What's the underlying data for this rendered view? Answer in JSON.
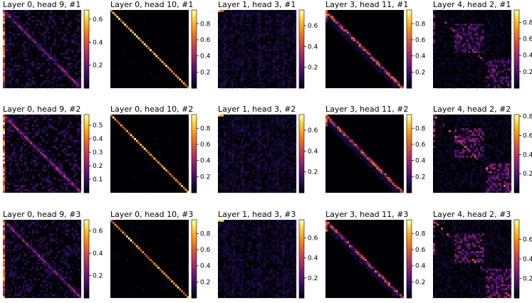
{
  "chart_data": {
    "type": "heatmap",
    "colormap": "inferno",
    "matrix_size": 40,
    "panels": [
      {
        "title": "Layer 0, head 9, #1",
        "pattern": "noisy-diagonal",
        "vmax": 0.68,
        "ticks": [
          0.2,
          0.4,
          0.6
        ],
        "seed": 11
      },
      {
        "title": "Layer 0, head 10, #1",
        "pattern": "diagonal",
        "vmax": 0.97,
        "ticks": [
          0.2,
          0.4,
          0.6,
          0.8
        ],
        "seed": 12
      },
      {
        "title": "Layer 1, head 3, #1",
        "pattern": "diffuse",
        "vmax": 0.75,
        "ticks": [
          0.2,
          0.4,
          0.6
        ],
        "seed": 13
      },
      {
        "title": "Layer 3, head 11, #1",
        "pattern": "sub-diagonal",
        "vmax": 0.97,
        "ticks": [
          0.2,
          0.4,
          0.6,
          0.8
        ],
        "seed": 14
      },
      {
        "title": "Layer 4, head 2, #1",
        "pattern": "blocks",
        "vmax": 0.95,
        "ticks": [
          0.2,
          0.4,
          0.6,
          0.8
        ],
        "seed": 15
      },
      {
        "title": "Layer 0, head 9, #2",
        "pattern": "noisy-diagonal",
        "vmax": 0.58,
        "ticks": [
          0.1,
          0.2,
          0.3,
          0.4,
          0.5
        ],
        "seed": 21
      },
      {
        "title": "Layer 0, head 10, #2",
        "pattern": "diagonal",
        "vmax": 0.97,
        "ticks": [
          0.2,
          0.4,
          0.6,
          0.8
        ],
        "seed": 22
      },
      {
        "title": "Layer 1, head 3, #2",
        "pattern": "diffuse",
        "vmax": 0.75,
        "ticks": [
          0.2,
          0.4,
          0.6
        ],
        "seed": 23
      },
      {
        "title": "Layer 3, head 11, #2",
        "pattern": "sub-diagonal",
        "vmax": 0.97,
        "ticks": [
          0.2,
          0.4,
          0.6,
          0.8
        ],
        "seed": 24
      },
      {
        "title": "Layer 4, head 2, #2",
        "pattern": "blocks",
        "vmax": 0.82,
        "ticks": [
          0.2,
          0.4,
          0.6,
          0.8
        ],
        "seed": 25
      },
      {
        "title": "Layer 0, head 9, #3",
        "pattern": "noisy-diagonal",
        "vmax": 0.7,
        "ticks": [
          0.2,
          0.4,
          0.6
        ],
        "seed": 31
      },
      {
        "title": "Layer 0, head 10, #3",
        "pattern": "diagonal",
        "vmax": 0.97,
        "ticks": [
          0.2,
          0.4,
          0.6,
          0.8
        ],
        "seed": 32
      },
      {
        "title": "Layer 1, head 3, #3",
        "pattern": "diffuse",
        "vmax": 0.78,
        "ticks": [
          0.2,
          0.4,
          0.6
        ],
        "seed": 33
      },
      {
        "title": "Layer 3, head 11, #3",
        "pattern": "sub-diagonal",
        "vmax": 0.97,
        "ticks": [
          0.2,
          0.4,
          0.6,
          0.8
        ],
        "seed": 34
      },
      {
        "title": "Layer 4, head 2, #3",
        "pattern": "blocks",
        "vmax": 0.8,
        "ticks": [
          0.2,
          0.4,
          0.6
        ],
        "seed": 35
      }
    ]
  }
}
